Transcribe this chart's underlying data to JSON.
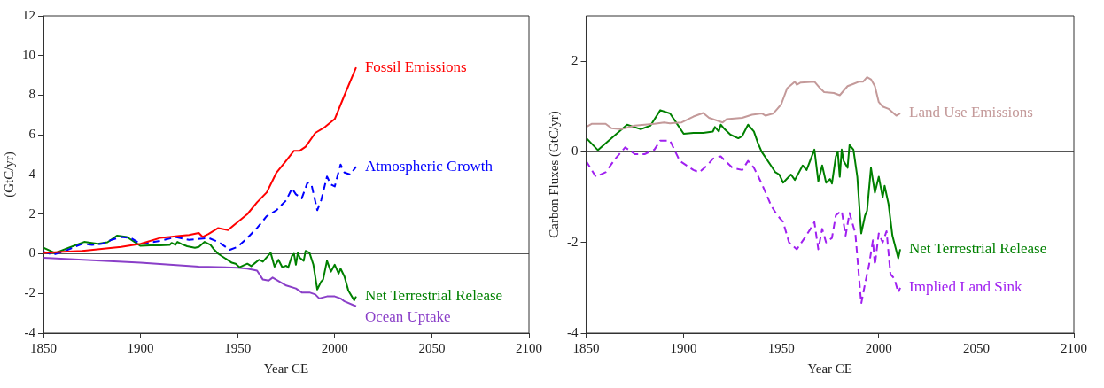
{
  "chart_data": [
    {
      "type": "line",
      "xlabel": "Year CE",
      "ylabel": "(GtC/yr)",
      "xlim": [
        1850,
        2100
      ],
      "xticks": [
        1850,
        1900,
        1950,
        2000,
        2050,
        2100
      ],
      "ylim": [
        -4,
        12
      ],
      "yticks": [
        -4,
        -2,
        0,
        2,
        4,
        6,
        8,
        10,
        12
      ],
      "grid": false,
      "legend": false,
      "marker": "none",
      "ref_lines": [
        {
          "axis": "y",
          "value": 0
        }
      ],
      "series": [
        {
          "name": "Fossil Emissions",
          "color": "#ff0000",
          "line_style": "solid",
          "x": [
            1850,
            1860,
            1870,
            1880,
            1890,
            1900,
            1910,
            1915,
            1920,
            1925,
            1930,
            1932,
            1935,
            1940,
            1945,
            1950,
            1955,
            1960,
            1965,
            1970,
            1975,
            1979,
            1982,
            1985,
            1990,
            1995,
            2000,
            2005,
            2011
          ],
          "values": [
            0.05,
            0.1,
            0.15,
            0.25,
            0.35,
            0.5,
            0.8,
            0.85,
            0.9,
            0.95,
            1.05,
            0.85,
            1.0,
            1.3,
            1.2,
            1.6,
            2.0,
            2.6,
            3.1,
            4.1,
            4.7,
            5.2,
            5.2,
            5.4,
            6.1,
            6.4,
            6.8,
            8.0,
            9.4
          ]
        },
        {
          "name": "Atmospheric Growth",
          "color": "#0000ff",
          "line_style": "dashed",
          "x": [
            1850,
            1855,
            1860,
            1870,
            1875,
            1880,
            1885,
            1890,
            1895,
            1900,
            1910,
            1918,
            1925,
            1935,
            1940,
            1946,
            1950,
            1955,
            1960,
            1965,
            1970,
            1975,
            1978,
            1980,
            1983,
            1986,
            1988,
            1991,
            1993,
            1996,
            1998,
            2000,
            2003,
            2005,
            2008,
            2011
          ],
          "values": [
            0.1,
            -0.05,
            0.1,
            0.5,
            0.45,
            0.5,
            0.7,
            0.85,
            0.8,
            0.5,
            0.65,
            0.85,
            0.7,
            0.8,
            0.6,
            0.2,
            0.35,
            0.8,
            1.3,
            1.9,
            2.2,
            2.7,
            3.3,
            3.0,
            2.8,
            3.6,
            3.5,
            2.2,
            2.7,
            3.9,
            3.5,
            3.4,
            4.5,
            4.1,
            4.0,
            4.4
          ]
        },
        {
          "name": "Net Terrestrial Release",
          "color": "#008000",
          "line_style": "solid",
          "x": [
            1850,
            1856,
            1863,
            1871,
            1878,
            1883,
            1888,
            1893,
            1900,
            1905,
            1910,
            1915,
            1916,
            1918,
            1919,
            1921,
            1924,
            1928,
            1930,
            1933,
            1936,
            1938,
            1940,
            1945,
            1947,
            1949,
            1951,
            1955,
            1957,
            1961,
            1963,
            1967,
            1969,
            1971,
            1973,
            1975,
            1976,
            1978,
            1979,
            1980,
            1981,
            1982,
            1984,
            1985,
            1987,
            1989,
            1991,
            1993,
            1994,
            1996,
            1998,
            2000,
            2002,
            2003,
            2005,
            2007,
            2010,
            2011
          ],
          "values": [
            0.31,
            0.04,
            0.3,
            0.6,
            0.5,
            0.58,
            0.92,
            0.85,
            0.4,
            0.42,
            0.42,
            0.45,
            0.55,
            0.45,
            0.6,
            0.5,
            0.38,
            0.3,
            0.35,
            0.6,
            0.45,
            0.2,
            0.0,
            -0.32,
            -0.45,
            -0.5,
            -0.68,
            -0.5,
            -0.62,
            -0.3,
            -0.4,
            0.05,
            -0.65,
            -0.3,
            -0.68,
            -0.6,
            -0.7,
            -0.1,
            0.0,
            -0.55,
            0.05,
            -0.2,
            -0.35,
            0.15,
            0.05,
            -0.55,
            -1.8,
            -1.4,
            -1.3,
            -0.35,
            -0.9,
            -0.55,
            -1.0,
            -0.75,
            -1.15,
            -1.85,
            -2.35,
            -2.15
          ]
        },
        {
          "name": "Ocean Uptake",
          "color": "#8a3fc8",
          "line_style": "solid",
          "x": [
            1850,
            1900,
            1930,
            1950,
            1955,
            1960,
            1963,
            1966,
            1968,
            1975,
            1980,
            1983,
            1987,
            1990,
            1992,
            1996,
            2000,
            2003,
            2005,
            2011
          ],
          "values": [
            -0.2,
            -0.45,
            -0.65,
            -0.7,
            -0.75,
            -0.85,
            -1.3,
            -1.35,
            -1.2,
            -1.6,
            -1.75,
            -1.95,
            -1.95,
            -2.05,
            -2.25,
            -2.15,
            -2.15,
            -2.25,
            -2.4,
            -2.65
          ]
        }
      ]
    },
    {
      "type": "line",
      "xlabel": "Year CE",
      "ylabel": "Carbon Fluxes (GtC/yr)",
      "xlim": [
        1850,
        2100
      ],
      "xticks": [
        1850,
        1900,
        1950,
        2000,
        2050,
        2100
      ],
      "ylim": [
        -4,
        3
      ],
      "yticks": [
        -4,
        -2,
        0,
        2
      ],
      "grid": false,
      "legend": false,
      "marker": "none",
      "ref_lines": [
        {
          "axis": "y",
          "value": 0
        }
      ],
      "series": [
        {
          "name": "Land Use Emissions",
          "color": "#c49a9a",
          "line_style": "solid",
          "x": [
            1850,
            1853,
            1860,
            1863,
            1868,
            1875,
            1885,
            1890,
            1893,
            1899,
            1905,
            1910,
            1913,
            1920,
            1922,
            1930,
            1935,
            1940,
            1942,
            1946,
            1948,
            1950,
            1953,
            1957,
            1958,
            1960,
            1967,
            1970,
            1972,
            1977,
            1980,
            1984,
            1987,
            1990,
            1992,
            1994,
            1996,
            1998,
            2000,
            2002,
            2005,
            2009,
            2011
          ],
          "values": [
            0.55,
            0.62,
            0.62,
            0.52,
            0.5,
            0.58,
            0.62,
            0.65,
            0.63,
            0.65,
            0.78,
            0.86,
            0.75,
            0.65,
            0.72,
            0.75,
            0.82,
            0.85,
            0.8,
            0.85,
            0.95,
            1.05,
            1.4,
            1.55,
            1.48,
            1.53,
            1.55,
            1.4,
            1.32,
            1.3,
            1.25,
            1.45,
            1.5,
            1.55,
            1.55,
            1.65,
            1.6,
            1.45,
            1.1,
            1.0,
            0.95,
            0.8,
            0.85
          ]
        },
        {
          "name": "Net Terrestrial Release",
          "color": "#008000",
          "line_style": "solid",
          "x": [
            1850,
            1856,
            1863,
            1871,
            1878,
            1883,
            1888,
            1893,
            1900,
            1905,
            1910,
            1915,
            1916,
            1918,
            1919,
            1921,
            1924,
            1928,
            1930,
            1933,
            1936,
            1938,
            1940,
            1945,
            1947,
            1949,
            1951,
            1955,
            1957,
            1961,
            1963,
            1967,
            1969,
            1971,
            1973,
            1975,
            1976,
            1978,
            1979,
            1980,
            1981,
            1982,
            1984,
            1985,
            1987,
            1989,
            1991,
            1993,
            1994,
            1996,
            1998,
            2000,
            2002,
            2003,
            2005,
            2007,
            2010,
            2011
          ],
          "values": [
            0.31,
            0.04,
            0.3,
            0.6,
            0.5,
            0.58,
            0.92,
            0.85,
            0.4,
            0.42,
            0.42,
            0.45,
            0.55,
            0.45,
            0.6,
            0.5,
            0.38,
            0.3,
            0.35,
            0.6,
            0.45,
            0.2,
            0.0,
            -0.32,
            -0.45,
            -0.5,
            -0.68,
            -0.5,
            -0.62,
            -0.3,
            -0.4,
            0.05,
            -0.65,
            -0.3,
            -0.68,
            -0.6,
            -0.7,
            -0.1,
            0.0,
            -0.55,
            0.05,
            -0.2,
            -0.35,
            0.15,
            0.05,
            -0.55,
            -1.8,
            -1.4,
            -1.3,
            -0.35,
            -0.9,
            -0.55,
            -1.0,
            -0.75,
            -1.15,
            -1.85,
            -2.35,
            -2.15
          ]
        },
        {
          "name": "Implied Land Sink",
          "color": "#a020f0",
          "line_style": "dashed",
          "x": [
            1850,
            1855,
            1860,
            1865,
            1870,
            1875,
            1880,
            1885,
            1888,
            1893,
            1898,
            1905,
            1908,
            1912,
            1915,
            1919,
            1925,
            1930,
            1933,
            1936,
            1940,
            1945,
            1948,
            1951,
            1954,
            1958,
            1962,
            1965,
            1967,
            1969,
            1971,
            1973,
            1976,
            1978,
            1981,
            1983,
            1985,
            1988,
            1991,
            1993,
            1995,
            1997,
            1998,
            2000,
            2002,
            2004,
            2006,
            2008,
            2010,
            2011
          ],
          "values": [
            -0.2,
            -0.55,
            -0.45,
            -0.15,
            0.1,
            -0.05,
            -0.05,
            0.05,
            0.25,
            0.25,
            -0.2,
            -0.4,
            -0.45,
            -0.3,
            -0.15,
            -0.1,
            -0.35,
            -0.4,
            -0.2,
            -0.35,
            -0.7,
            -1.2,
            -1.4,
            -1.55,
            -2.0,
            -2.15,
            -1.9,
            -1.7,
            -1.55,
            -2.15,
            -1.7,
            -2.0,
            -1.9,
            -1.4,
            -1.3,
            -1.85,
            -1.35,
            -1.8,
            -3.35,
            -2.9,
            -2.5,
            -1.95,
            -2.5,
            -1.8,
            -2.0,
            -1.75,
            -2.7,
            -2.8,
            -3.1,
            -3.0
          ]
        }
      ]
    }
  ]
}
